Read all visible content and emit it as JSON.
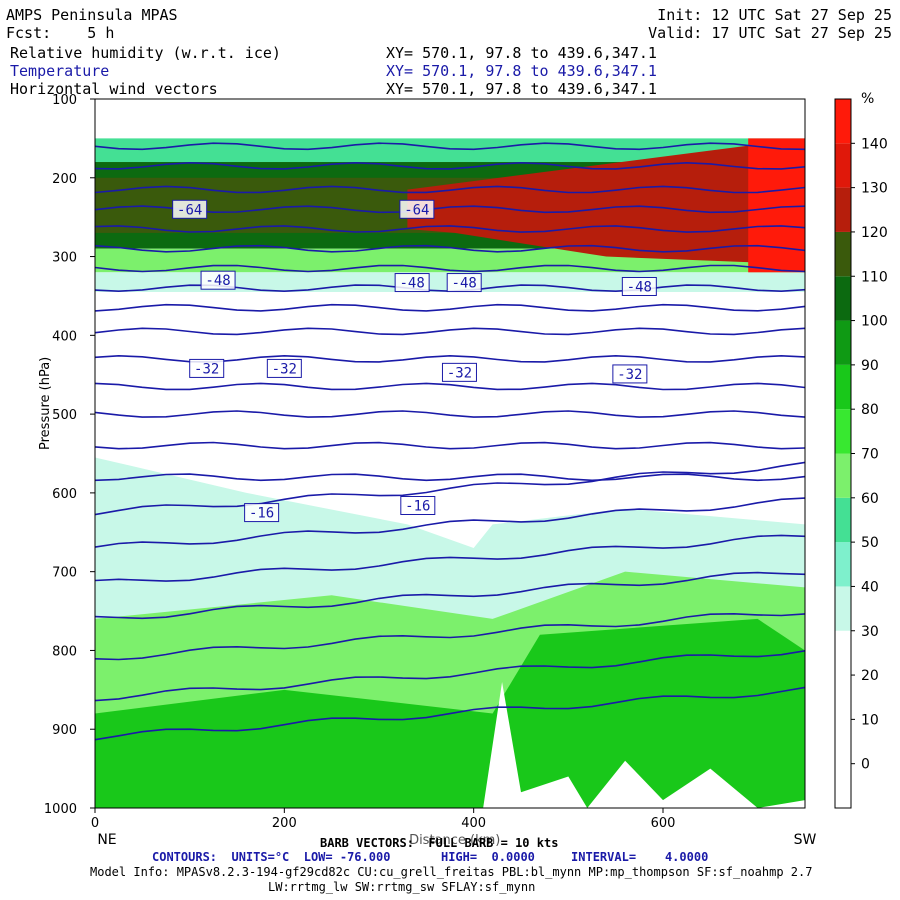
{
  "header": {
    "model": "AMPS Peninsula MPAS",
    "init": "Init: 12 UTC Sat 27 Sep 25",
    "fcst": "Fcst:    5 h",
    "valid": "Valid: 17 UTC Sat 27 Sep 25",
    "fields": [
      {
        "name": "Relative humidity (w.r.t. ice)",
        "xy": "XY= 570.1, 97.8 to 439.6,347.1",
        "color": "#000000"
      },
      {
        "name": "Temperature",
        "xy": "XY= 570.1, 97.8 to 439.6,347.1",
        "color": "#1a1aa8"
      },
      {
        "name": "Horizontal wind vectors",
        "xy": "XY= 570.1, 97.8 to 439.6,347.1",
        "color": "#000000"
      }
    ]
  },
  "footer": {
    "barb": "BARB VECTORS:  FULL BARB = 10 kts",
    "contours": "CONTOURS:  UNITS=°C  LOW= -76.000       HIGH=  0.0000     INTERVAL=    4.0000",
    "model_info": "Model Info: MPASv8.2.3-194-gf29cd82c CU:cu_grell_freitas PBL:bl_mynn MP:mp_thompson SF:sf_noahmp 2.7",
    "model_info2": "LW:rrtmg_lw SW:rrtmg_sw SFLAY:sf_mynn"
  },
  "chart_data": {
    "type": "heatmap",
    "title": "AMPS Peninsula MPAS",
    "xlabel": "Distance (km)",
    "ylabel": "Pressure (hPa)",
    "x_ticks": [
      0,
      200,
      400,
      600
    ],
    "xlim": [
      0,
      750
    ],
    "x_end_labels": {
      "left": "NE",
      "right": "SW"
    },
    "y_ticks": [
      100,
      200,
      300,
      400,
      500,
      600,
      700,
      800,
      900,
      1000
    ],
    "ylim": [
      1000,
      100
    ],
    "colorbar": {
      "unit": "%",
      "levels": [
        -10,
        0,
        10,
        20,
        30,
        40,
        50,
        60,
        70,
        80,
        90,
        100,
        110,
        120,
        130,
        140,
        150
      ],
      "tick_labels": [
        0,
        10,
        20,
        30,
        40,
        50,
        60,
        70,
        80,
        90,
        100,
        110,
        120,
        130,
        140
      ],
      "colors": [
        "#ffffff",
        "#ffffff",
        "#ffffff",
        "#ffffff",
        "#c8f8e8",
        "#7ef0cc",
        "#44e094",
        "#7cf06c",
        "#38e830",
        "#19c81a",
        "#0f9a14",
        "#0c6a10",
        "#3a5a0c",
        "#b61e0c",
        "#e0180a",
        "#ff1a0a"
      ]
    },
    "temperature_contour_labels": [
      {
        "x": 100,
        "p": 240,
        "label": "-64"
      },
      {
        "x": 340,
        "p": 240,
        "label": "-64"
      },
      {
        "x": 130,
        "p": 330,
        "label": "-48"
      },
      {
        "x": 335,
        "p": 333,
        "label": "-48"
      },
      {
        "x": 390,
        "p": 333,
        "label": "-48"
      },
      {
        "x": 575,
        "p": 338,
        "label": "-48"
      },
      {
        "x": 118,
        "p": 442,
        "label": "-32"
      },
      {
        "x": 200,
        "p": 442,
        "label": "-32"
      },
      {
        "x": 385,
        "p": 447,
        "label": "-32"
      },
      {
        "x": 565,
        "p": 449,
        "label": "-32"
      },
      {
        "x": 176,
        "p": 625,
        "label": "-16"
      },
      {
        "x": 341,
        "p": 616,
        "label": "-16"
      }
    ]
  }
}
